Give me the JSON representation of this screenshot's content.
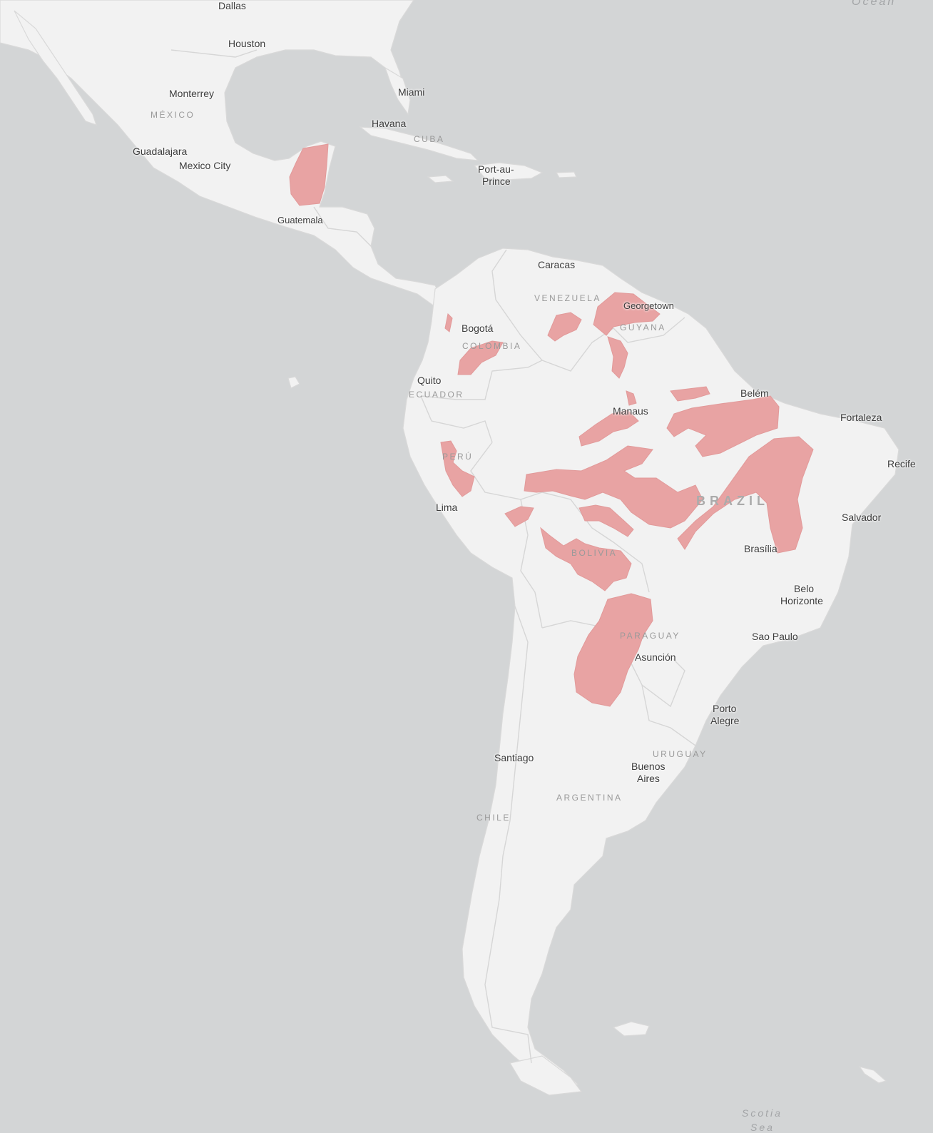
{
  "map": {
    "colors": {
      "water": "#d3d5d6",
      "land": "#f2f2f2",
      "highlight": "#e8a3a3"
    },
    "water_labels": {
      "ocean": "Ocean",
      "scotia": "Scotia",
      "sea": "Sea"
    },
    "cities": {
      "dallas": "Dallas",
      "houston": "Houston",
      "monterrey": "Monterrey",
      "miami": "Miami",
      "havana": "Havana",
      "guadalajara": "Guadalajara",
      "mexico_city": "Mexico City",
      "port_au_prince_1": "Port-au-",
      "port_au_prince_2": "Prince",
      "guatemala": "Guatemala",
      "caracas": "Caracas",
      "georgetown": "Georgetown",
      "bogota": "Bogotá",
      "quito": "Quito",
      "belem": "Belém",
      "manaus": "Manaus",
      "fortaleza": "Fortaleza",
      "recife": "Recife",
      "lima": "Lima",
      "salvador": "Salvador",
      "brasilia": "Brasília",
      "belo_horizonte_1": "Belo",
      "belo_horizonte_2": "Horizonte",
      "sao_paulo": "Sao Paulo",
      "asuncion": "Asunción",
      "porto_alegre_1": "Porto",
      "porto_alegre_2": "Alegre",
      "santiago": "Santiago",
      "buenos_aires_1": "Buenos",
      "buenos_aires_2": "Aires"
    },
    "countries": {
      "mexico": "MÉXICO",
      "cuba": "CUBA",
      "venezuela": "VENEZUELA",
      "guyana": "GUYANA",
      "colombia": "COLOMBIA",
      "ecuador": "ECUADOR",
      "peru": "PERÚ",
      "brazil": "BRAZIL",
      "bolivia": "BOLIVIA",
      "paraguay": "PARAGUAY",
      "uruguay": "URUGUAY",
      "argentina": "ARGENTINA",
      "chile": "CHILE"
    }
  }
}
